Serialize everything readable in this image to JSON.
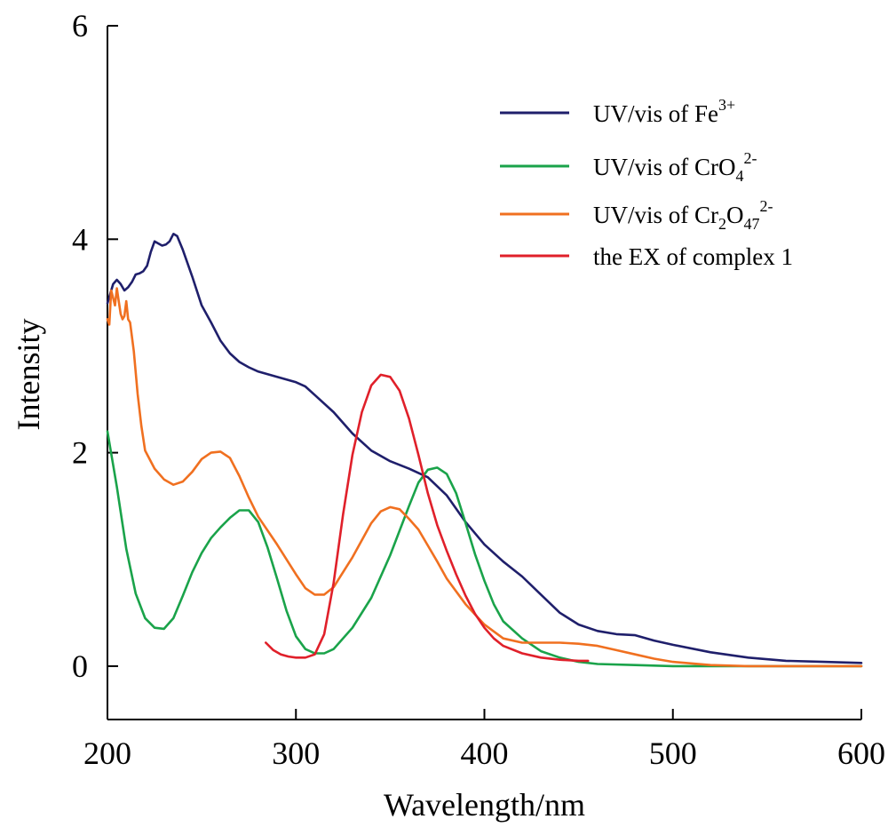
{
  "chart_data": {
    "type": "line",
    "xlabel": "Wavelength/nm",
    "ylabel": "Intensity",
    "xlim": [
      200,
      600
    ],
    "ylim": [
      -0.5,
      6
    ],
    "x_ticks": [
      200,
      300,
      400,
      500,
      600
    ],
    "y_ticks": [
      0,
      2,
      4,
      6
    ],
    "grid": false,
    "legend_position": "top-right",
    "series": [
      {
        "name": "UV/vis of Fe3+",
        "legend": {
          "base": "UV/vis of Fe",
          "sub": "",
          "sup": "3+"
        },
        "color": "#1f1f6b",
        "points": [
          [
            200,
            3.4
          ],
          [
            203,
            3.58
          ],
          [
            205,
            3.62
          ],
          [
            207,
            3.58
          ],
          [
            209,
            3.52
          ],
          [
            211,
            3.55
          ],
          [
            213,
            3.6
          ],
          [
            215,
            3.67
          ],
          [
            217,
            3.68
          ],
          [
            219,
            3.7
          ],
          [
            221,
            3.75
          ],
          [
            223,
            3.88
          ],
          [
            225,
            3.98
          ],
          [
            227,
            3.96
          ],
          [
            229,
            3.94
          ],
          [
            231,
            3.95
          ],
          [
            233,
            3.98
          ],
          [
            235,
            4.05
          ],
          [
            237,
            4.03
          ],
          [
            240,
            3.9
          ],
          [
            245,
            3.65
          ],
          [
            250,
            3.38
          ],
          [
            255,
            3.22
          ],
          [
            260,
            3.05
          ],
          [
            265,
            2.93
          ],
          [
            270,
            2.85
          ],
          [
            275,
            2.8
          ],
          [
            280,
            2.76
          ],
          [
            290,
            2.71
          ],
          [
            300,
            2.66
          ],
          [
            305,
            2.62
          ],
          [
            310,
            2.54
          ],
          [
            320,
            2.38
          ],
          [
            330,
            2.18
          ],
          [
            340,
            2.02
          ],
          [
            350,
            1.92
          ],
          [
            360,
            1.85
          ],
          [
            370,
            1.77
          ],
          [
            380,
            1.6
          ],
          [
            390,
            1.35
          ],
          [
            400,
            1.14
          ],
          [
            410,
            0.98
          ],
          [
            420,
            0.84
          ],
          [
            430,
            0.67
          ],
          [
            440,
            0.5
          ],
          [
            450,
            0.39
          ],
          [
            460,
            0.33
          ],
          [
            470,
            0.3
          ],
          [
            480,
            0.29
          ],
          [
            490,
            0.24
          ],
          [
            500,
            0.2
          ],
          [
            520,
            0.13
          ],
          [
            540,
            0.08
          ],
          [
            560,
            0.05
          ],
          [
            580,
            0.04
          ],
          [
            600,
            0.03
          ]
        ]
      },
      {
        "name": "UV/vis of CrO42-",
        "legend": {
          "base": "UV/vis of CrO",
          "sub": "4",
          "sup": "2-"
        },
        "color": "#1aa34a",
        "points": [
          [
            200,
            2.2
          ],
          [
            205,
            1.68
          ],
          [
            210,
            1.1
          ],
          [
            215,
            0.68
          ],
          [
            220,
            0.45
          ],
          [
            225,
            0.36
          ],
          [
            230,
            0.35
          ],
          [
            235,
            0.45
          ],
          [
            240,
            0.66
          ],
          [
            245,
            0.88
          ],
          [
            250,
            1.06
          ],
          [
            255,
            1.2
          ],
          [
            260,
            1.3
          ],
          [
            265,
            1.39
          ],
          [
            270,
            1.46
          ],
          [
            275,
            1.46
          ],
          [
            280,
            1.35
          ],
          [
            285,
            1.11
          ],
          [
            290,
            0.82
          ],
          [
            295,
            0.52
          ],
          [
            300,
            0.28
          ],
          [
            305,
            0.16
          ],
          [
            310,
            0.12
          ],
          [
            315,
            0.12
          ],
          [
            320,
            0.16
          ],
          [
            330,
            0.36
          ],
          [
            340,
            0.64
          ],
          [
            350,
            1.04
          ],
          [
            360,
            1.5
          ],
          [
            365,
            1.72
          ],
          [
            370,
            1.84
          ],
          [
            375,
            1.86
          ],
          [
            380,
            1.8
          ],
          [
            385,
            1.62
          ],
          [
            390,
            1.34
          ],
          [
            395,
            1.05
          ],
          [
            400,
            0.8
          ],
          [
            405,
            0.58
          ],
          [
            410,
            0.42
          ],
          [
            420,
            0.26
          ],
          [
            430,
            0.14
          ],
          [
            440,
            0.08
          ],
          [
            450,
            0.04
          ],
          [
            460,
            0.02
          ],
          [
            480,
            0.01
          ],
          [
            500,
            0.0
          ],
          [
            600,
            0.0
          ]
        ]
      },
      {
        "name": "UV/vis of Cr2O472-",
        "legend": {
          "base": "UV/vis of Cr",
          "sub": "2",
          "mid": "O",
          "sub2": "47",
          "sup": "2-"
        },
        "color": "#f07020",
        "points": [
          [
            200,
            3.25
          ],
          [
            201,
            3.2
          ],
          [
            202,
            3.52
          ],
          [
            203,
            3.45
          ],
          [
            204,
            3.38
          ],
          [
            205,
            3.54
          ],
          [
            206,
            3.42
          ],
          [
            207,
            3.3
          ],
          [
            208,
            3.25
          ],
          [
            209,
            3.28
          ],
          [
            210,
            3.42
          ],
          [
            211,
            3.25
          ],
          [
            212,
            3.22
          ],
          [
            214,
            2.95
          ],
          [
            216,
            2.55
          ],
          [
            218,
            2.25
          ],
          [
            220,
            2.02
          ],
          [
            225,
            1.85
          ],
          [
            230,
            1.75
          ],
          [
            235,
            1.7
          ],
          [
            240,
            1.73
          ],
          [
            245,
            1.82
          ],
          [
            250,
            1.94
          ],
          [
            255,
            2.0
          ],
          [
            260,
            2.01
          ],
          [
            265,
            1.95
          ],
          [
            270,
            1.78
          ],
          [
            275,
            1.58
          ],
          [
            280,
            1.4
          ],
          [
            290,
            1.14
          ],
          [
            300,
            0.86
          ],
          [
            305,
            0.73
          ],
          [
            310,
            0.67
          ],
          [
            315,
            0.67
          ],
          [
            320,
            0.74
          ],
          [
            330,
            1.02
          ],
          [
            340,
            1.34
          ],
          [
            345,
            1.45
          ],
          [
            350,
            1.49
          ],
          [
            355,
            1.47
          ],
          [
            360,
            1.38
          ],
          [
            365,
            1.28
          ],
          [
            370,
            1.13
          ],
          [
            375,
            0.98
          ],
          [
            380,
            0.82
          ],
          [
            390,
            0.58
          ],
          [
            400,
            0.39
          ],
          [
            410,
            0.26
          ],
          [
            420,
            0.22
          ],
          [
            430,
            0.22
          ],
          [
            440,
            0.22
          ],
          [
            450,
            0.21
          ],
          [
            460,
            0.19
          ],
          [
            470,
            0.15
          ],
          [
            480,
            0.11
          ],
          [
            490,
            0.07
          ],
          [
            500,
            0.04
          ],
          [
            520,
            0.01
          ],
          [
            540,
            0.0
          ],
          [
            600,
            0.0
          ]
        ]
      },
      {
        "name": "the EX of complex 1",
        "legend": {
          "base": "the EX of complex 1",
          "sub": "",
          "sup": ""
        },
        "color": "#e0202a",
        "points": [
          [
            284,
            0.22
          ],
          [
            288,
            0.15
          ],
          [
            292,
            0.11
          ],
          [
            296,
            0.09
          ],
          [
            300,
            0.08
          ],
          [
            305,
            0.08
          ],
          [
            310,
            0.11
          ],
          [
            315,
            0.3
          ],
          [
            320,
            0.78
          ],
          [
            325,
            1.42
          ],
          [
            330,
            1.98
          ],
          [
            335,
            2.38
          ],
          [
            340,
            2.63
          ],
          [
            345,
            2.73
          ],
          [
            350,
            2.71
          ],
          [
            355,
            2.58
          ],
          [
            360,
            2.32
          ],
          [
            365,
            1.98
          ],
          [
            370,
            1.62
          ],
          [
            375,
            1.32
          ],
          [
            380,
            1.08
          ],
          [
            385,
            0.86
          ],
          [
            390,
            0.66
          ],
          [
            395,
            0.49
          ],
          [
            400,
            0.36
          ],
          [
            405,
            0.26
          ],
          [
            410,
            0.19
          ],
          [
            420,
            0.12
          ],
          [
            430,
            0.08
          ],
          [
            440,
            0.06
          ],
          [
            450,
            0.05
          ],
          [
            455,
            0.05
          ]
        ]
      }
    ]
  }
}
